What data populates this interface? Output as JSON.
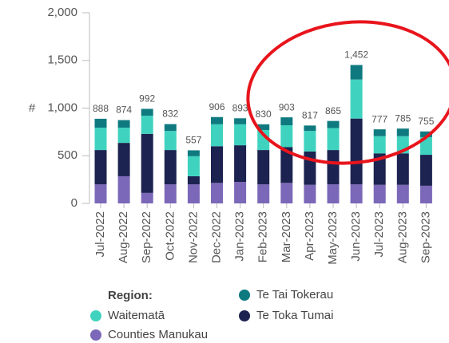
{
  "chart_data": {
    "type": "stacked_bar",
    "y_label": "#",
    "categories": [
      "Jul-2022",
      "Aug-2022",
      "Sep-2022",
      "Oct-2022",
      "Nov-2022",
      "Dec-2022",
      "Jan-2023",
      "Feb-2023",
      "Mar-2023",
      "Apr-2023",
      "May-2023",
      "Jun-2023",
      "Jul-2023",
      "Aug-2023",
      "Sep-2023"
    ],
    "series": [
      {
        "name": "Counties Manukau",
        "color": "#7b68b8",
        "values": [
          200,
          285,
          110,
          200,
          200,
          215,
          225,
          200,
          215,
          195,
          200,
          200,
          195,
          195,
          185
        ]
      },
      {
        "name": "Te Toka Tumai",
        "color": "#1c2350",
        "values": [
          360,
          350,
          620,
          360,
          85,
          385,
          385,
          360,
          375,
          350,
          360,
          690,
          330,
          330,
          325
        ]
      },
      {
        "name": "Waitematā",
        "color": "#3fd3bf",
        "values": [
          235,
          160,
          190,
          200,
          210,
          230,
          220,
          210,
          230,
          215,
          230,
          410,
          180,
          180,
          185
        ]
      },
      {
        "name": "Te Tai Tokerau",
        "color": "#0e7a80",
        "values": [
          93,
          79,
          72,
          72,
          62,
          76,
          63,
          60,
          83,
          57,
          75,
          152,
          72,
          80,
          60
        ]
      }
    ],
    "totals": [
      888,
      874,
      992,
      832,
      557,
      906,
      893,
      830,
      903,
      817,
      865,
      1452,
      777,
      785,
      755
    ],
    "total_labels": [
      "888",
      "874",
      "992",
      "832",
      "557",
      "906",
      "893",
      "830",
      "903",
      "817",
      "865",
      "1,452",
      "777",
      "785",
      "755"
    ],
    "ylim": [
      0,
      2000
    ],
    "yticks": [
      0,
      {
        "value": 500,
        "label": "500"
      },
      {
        "value": 1000,
        "label": "1,000"
      },
      {
        "value": 1500,
        "label": "1,500"
      },
      {
        "value": 2000,
        "label": "2,000"
      }
    ],
    "legend_title": "Region:"
  }
}
